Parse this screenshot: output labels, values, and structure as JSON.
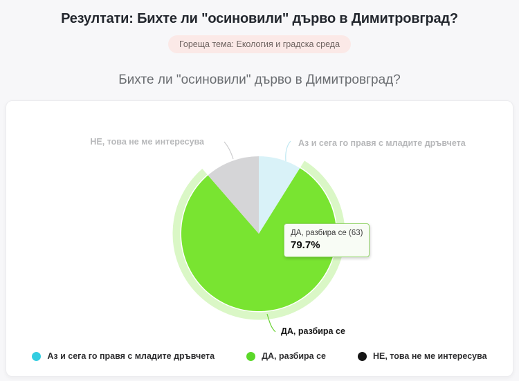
{
  "header": {
    "title": "Резултати: Бихте ли \"осиновили\" дърво в Димитровград?",
    "topic_badge": "Гореща тема: Екология и градска среда"
  },
  "chart_data": {
    "type": "pie",
    "title": "Бихте ли \"осиновили\" дърво в Димитровград?",
    "legend_position": "bottom",
    "slices": [
      {
        "key": "az-i-sega-go-pravya",
        "label": "Аз и сега го правя с младите дръвчета",
        "percent": 8.9,
        "color": "#33cde1",
        "fill": "#d9f2f8",
        "state": "inactive"
      },
      {
        "key": "da-razbira-se",
        "label": "ДА, разбира се",
        "percent": 79.7,
        "count": 63,
        "color": "#5bd829",
        "fill": "#79e431",
        "state": "hovered",
        "halo": true
      },
      {
        "key": "ne-tova-ne-me-interesuva",
        "label": "НЕ, това не ме интересува",
        "percent": 11.4,
        "color": "#161616",
        "fill": "#d5d5d7",
        "state": "inactive"
      }
    ],
    "tooltip": {
      "label": "ДА, разбира се (63)",
      "value": "79.7%"
    }
  }
}
